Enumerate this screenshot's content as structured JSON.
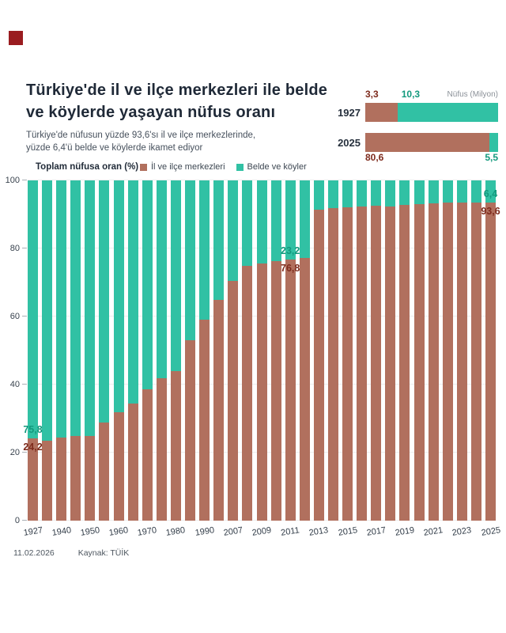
{
  "colors": {
    "urban": "#b1705e",
    "rural": "#31c1a4",
    "urban_text": "#7e2b1d",
    "rural_text": "#12997d",
    "title": "#1f2937",
    "logo": "#9a1c20"
  },
  "header": {
    "title_line1": "Türkiye'de il ve ilçe merkezleri ile belde",
    "title_line2": "ve köylerde yaşayan nüfus oranı",
    "subtitle_line1": "Türkiye'de nüfusun yüzde 93,6'sı il ve ilçe merkezlerinde,",
    "subtitle_line2": "yüzde 6,4'ü belde ve köylerde ikamet ediyor"
  },
  "mini_chart": {
    "title": "Nüfus (Milyon)",
    "rows": [
      {
        "label": "1927",
        "urban": 3.3,
        "rural": 10.3,
        "urban_text": "3,3",
        "rural_text": "10,3",
        "values_position": "above"
      },
      {
        "label": "2025",
        "urban": 80.6,
        "rural": 5.5,
        "urban_text": "80,6",
        "rural_text": "5,5",
        "values_position": "below"
      }
    ]
  },
  "legend": {
    "axis_title": "Toplam nüfusa oran (%)",
    "items": [
      {
        "label": "İl ve ilçe merkezleri",
        "color_key": "urban"
      },
      {
        "label": "Belde ve köyler",
        "color_key": "rural"
      }
    ]
  },
  "chart_data": {
    "type": "bar",
    "stacked": true,
    "title": "Türkiye'de il ve ilçe merkezleri ile belde ve köylerde yaşayan nüfus oranı",
    "ylabel": "Toplam nüfusa oran (%)",
    "ylim": [
      0,
      100
    ],
    "y_ticks": [
      0,
      20,
      40,
      60,
      80,
      100
    ],
    "grid": true,
    "legend_position": "top",
    "categories": [
      1927,
      1935,
      1940,
      1945,
      1950,
      1955,
      1960,
      1965,
      1970,
      1975,
      1980,
      1985,
      1990,
      2000,
      2007,
      2008,
      2009,
      2010,
      2011,
      2012,
      2013,
      2014,
      2015,
      2016,
      2017,
      2018,
      2019,
      2020,
      2021,
      2022,
      2023,
      2024,
      2025
    ],
    "x_tick_labels": [
      "1927",
      "1940",
      "1950",
      "1960",
      "1970",
      "1980",
      "1990",
      "2007",
      "2009",
      "2011",
      "2013",
      "2015",
      "2017",
      "2019",
      "2021",
      "2023",
      "2025"
    ],
    "series": [
      {
        "name": "İl ve ilçe merkezleri",
        "values": [
          24.2,
          23.5,
          24.4,
          24.9,
          25.0,
          28.8,
          31.9,
          34.4,
          38.5,
          41.8,
          43.9,
          53.0,
          59.0,
          64.9,
          70.5,
          75.0,
          75.5,
          76.3,
          76.8,
          77.3,
          91.3,
          91.8,
          92.1,
          92.3,
          92.5,
          92.3,
          92.8,
          93.0,
          93.2,
          93.4,
          93.4,
          93.5,
          93.6
        ]
      },
      {
        "name": "Belde ve köyler",
        "values": [
          75.8,
          76.5,
          75.6,
          75.1,
          75.0,
          71.2,
          68.1,
          65.6,
          61.5,
          58.2,
          56.1,
          47.0,
          41.0,
          35.1,
          29.5,
          25.0,
          24.5,
          23.7,
          23.2,
          22.7,
          8.7,
          8.2,
          7.9,
          7.7,
          7.5,
          7.7,
          7.2,
          7.0,
          6.8,
          6.6,
          6.6,
          6.5,
          6.4
        ]
      }
    ],
    "annotations": [
      {
        "year": 1927,
        "urban_text": "24,2",
        "rural_text": "75,8"
      },
      {
        "year": 2011,
        "urban_text": "76,8",
        "rural_text": "23,2"
      },
      {
        "year": 2025,
        "urban_text": "93,6",
        "rural_text": "6,4"
      }
    ]
  },
  "footer": {
    "date": "11.02.2026",
    "source": "Kaynak: TÜİK"
  }
}
